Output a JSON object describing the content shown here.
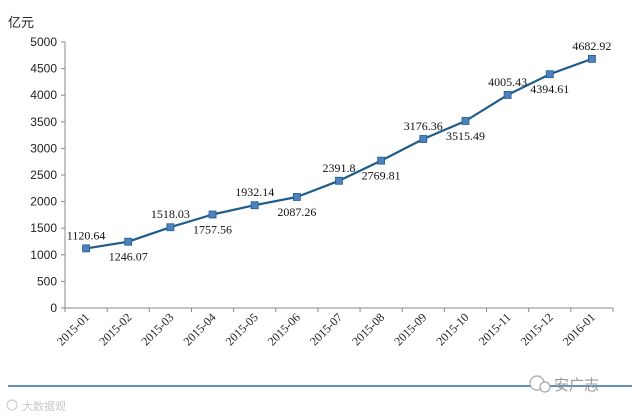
{
  "chart_data": {
    "type": "line",
    "title": "",
    "ylabel": "亿元",
    "xlabel": "",
    "categories": [
      "2015-01",
      "2015-02",
      "2015-03",
      "2015-04",
      "2015-05",
      "2015-06",
      "2015-07",
      "2015-08",
      "2015-09",
      "2015-10",
      "2015-11",
      "2015-12",
      "2016-01"
    ],
    "series": [
      {
        "values": [
          1120.64,
          1246.07,
          1518.03,
          1757.56,
          1932.14,
          2087.26,
          2391.8,
          2769.81,
          3176.36,
          3515.49,
          4005.43,
          4394.61,
          4682.92
        ]
      }
    ],
    "data_labels": [
      "1120.64",
      "1246.07",
      "1518.03",
      "1757.56",
      "1932.14",
      "2087.26",
      "2391.8",
      "2769.81",
      "3176.36",
      "3515.49",
      "4005.43",
      "4394.61",
      "4682.92"
    ],
    "label_positions": [
      "above",
      "below",
      "above",
      "below",
      "above",
      "below",
      "above",
      "below",
      "above",
      "below",
      "above",
      "below",
      "above"
    ],
    "ylim": [
      0,
      5000
    ],
    "yticks": [
      "0",
      "500",
      "1000",
      "1500",
      "2000",
      "2500",
      "3000",
      "3500",
      "4000",
      "4500",
      "5000"
    ],
    "grid": false,
    "legend": "none",
    "line_color": "#1f5c8a",
    "marker_color": "#4f81bd"
  },
  "watermark": {
    "left_text": "大数据观",
    "right_text": "安广志"
  }
}
